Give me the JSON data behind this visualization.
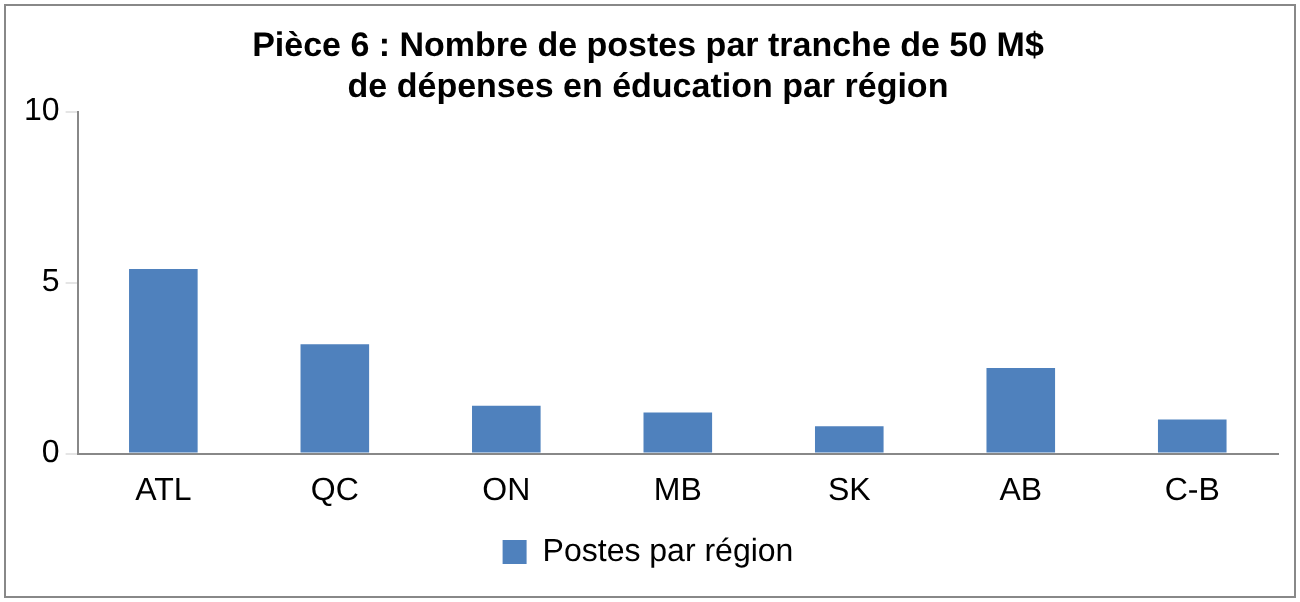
{
  "chart_data": {
    "type": "bar",
    "title": "Pièce 6 : Nombre de postes par tranche de 50 M$\nde dépenses en éducation par région",
    "categories": [
      "ATL",
      "QC",
      "ON",
      "MB",
      "SK",
      "AB",
      "C-B"
    ],
    "series": [
      {
        "name": "Postes par région",
        "color": "#4f81bd",
        "values": [
          5.4,
          3.2,
          1.4,
          1.2,
          0.8,
          2.5,
          1.0
        ]
      }
    ],
    "ylim": [
      0,
      10
    ],
    "yticks": [
      0,
      5,
      10
    ],
    "grid": false,
    "legend": "bottom"
  }
}
